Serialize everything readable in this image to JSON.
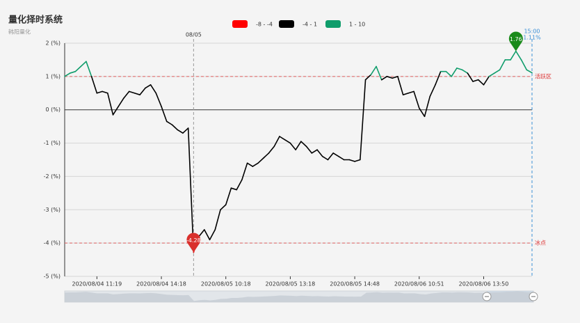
{
  "chart_data": {
    "type": "line",
    "title": "量化择时系统",
    "subtitle": "韩阳量化",
    "categories": [
      null,
      null,
      null,
      null,
      null,
      null,
      "2020/08/04 11:19",
      null,
      null,
      null,
      null,
      null,
      null,
      null,
      null,
      null,
      null,
      null,
      "2020/08/04 14:18",
      null,
      null,
      null,
      null,
      null,
      null,
      null,
      null,
      null,
      null,
      null,
      "2020/08/05 10:18",
      null,
      null,
      null,
      null,
      null,
      null,
      null,
      null,
      null,
      null,
      null,
      "2020/08/05 13:18",
      null,
      null,
      null,
      null,
      null,
      null,
      null,
      null,
      null,
      null,
      null,
      "2020/08/05 14:48",
      null,
      null,
      null,
      null,
      null,
      null,
      null,
      null,
      null,
      null,
      null,
      "2020/08/06 10:51",
      null,
      null,
      null,
      null,
      null,
      null,
      null,
      null,
      null,
      null,
      null,
      "2020/08/06 13:50",
      null,
      null,
      null,
      null,
      null,
      null,
      null,
      null,
      null
    ],
    "values": [
      1.0,
      1.1,
      1.15,
      1.3,
      1.45,
      1.0,
      0.5,
      0.55,
      0.5,
      -0.15,
      0.1,
      0.35,
      0.55,
      0.5,
      0.45,
      0.65,
      0.75,
      0.5,
      0.1,
      -0.35,
      -0.45,
      -0.6,
      -0.7,
      -0.55,
      -4.28,
      -3.8,
      -3.6,
      -3.9,
      -3.6,
      -3.0,
      -2.85,
      -2.35,
      -2.4,
      -2.1,
      -1.6,
      -1.7,
      -1.6,
      -1.45,
      -1.3,
      -1.1,
      -0.8,
      -0.9,
      -1.0,
      -1.2,
      -0.95,
      -1.1,
      -1.3,
      -1.2,
      -1.4,
      -1.5,
      -1.3,
      -1.4,
      -1.5,
      -1.5,
      -1.55,
      -1.5,
      0.9,
      1.05,
      1.3,
      0.9,
      1.0,
      0.95,
      1.0,
      0.45,
      0.5,
      0.55,
      0.05,
      -0.2,
      0.4,
      0.75,
      1.15,
      1.15,
      1.0,
      1.25,
      1.2,
      1.1,
      0.85,
      0.9,
      0.75,
      1.0,
      1.1,
      1.2,
      1.5,
      1.5,
      1.76,
      1.5,
      1.2,
      1.11
    ],
    "pieces": [
      {
        "min": -8,
        "max": -4,
        "label": "-8 - -4",
        "color": "#ff0000"
      },
      {
        "min": -4,
        "max": 1,
        "label": "-4 - 1",
        "color": "#000000"
      },
      {
        "min": 1,
        "max": 10,
        "label": "1 - 10",
        "color": "#0f9d6b"
      }
    ],
    "ylim": [
      -5,
      2
    ],
    "yticks": [
      {
        "value": -5,
        "label": "-5 (%)"
      },
      {
        "value": -4,
        "label": "-4 (%)"
      },
      {
        "value": -3,
        "label": "-3 (%)"
      },
      {
        "value": -2,
        "label": "-2 (%)"
      },
      {
        "value": -1,
        "label": "-1 (%)"
      },
      {
        "value": 0,
        "label": "0 (%)"
      },
      {
        "value": 1,
        "label": "1 (%)"
      },
      {
        "value": 2,
        "label": "2 (%)"
      }
    ],
    "grid": true,
    "mark_lines": [
      {
        "value": 1,
        "label": "活跃区"
      },
      {
        "value": -4,
        "label": "冰点"
      }
    ],
    "vertical_line": {
      "index": 24,
      "label": "08/05"
    },
    "mark_points": [
      {
        "value": 1.76,
        "color": "#1a8a1a"
      },
      {
        "value": -4.28,
        "color": "#d9302c"
      }
    ],
    "end_marker": {
      "time": "15:00",
      "value_label": "1.11%"
    }
  }
}
